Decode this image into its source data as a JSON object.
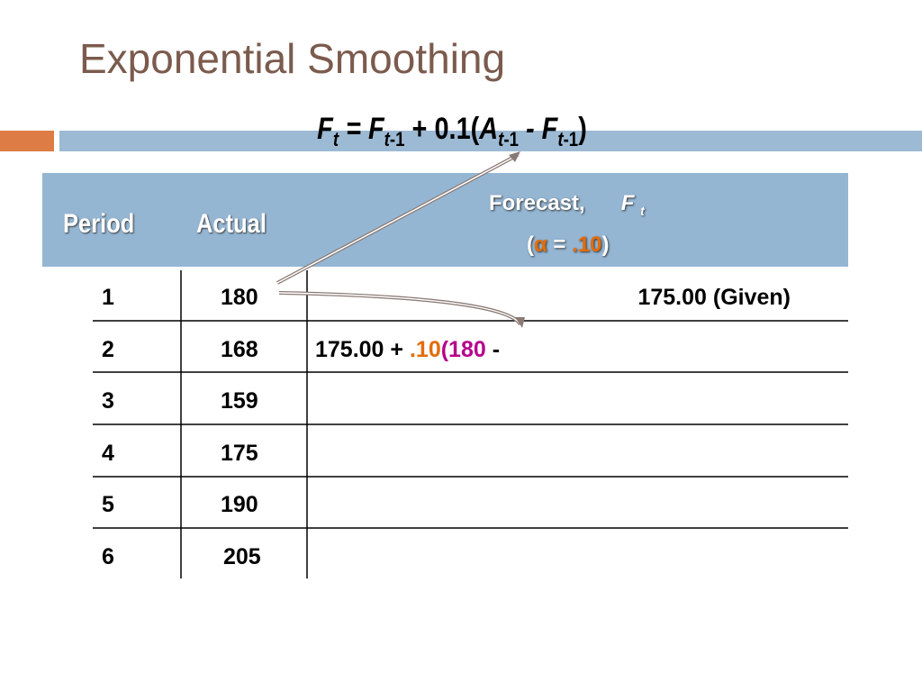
{
  "title": "Exponential Smoothing",
  "formula": [
    "F",
    "t",
    " = F",
    "t",
    "-1",
    " + 0.1(",
    "A",
    "t",
    "-1",
    " - F",
    "t",
    "-1",
    ")"
  ],
  "table": {
    "header": {
      "period": "Period",
      "actual": "Actual",
      "forecast": [
        "Forecast,",
        "F",
        "t",
        "(",
        "α",
        " = ",
        ".10",
        ")"
      ]
    },
    "rows": [
      {
        "period": 1,
        "actual": 180,
        "forecast": [
          "175.00 (Given)"
        ]
      },
      {
        "period": 2,
        "actual": 168,
        "forecast": [
          "175.00 + ",
          ".10",
          "(180",
          " -"
        ]
      },
      {
        "period": 3,
        "actual": 159
      },
      {
        "period": 4,
        "actual": 175
      },
      {
        "period": 5,
        "actual": 190
      },
      {
        "period": 6,
        "actual": 205
      }
    ]
  }
}
